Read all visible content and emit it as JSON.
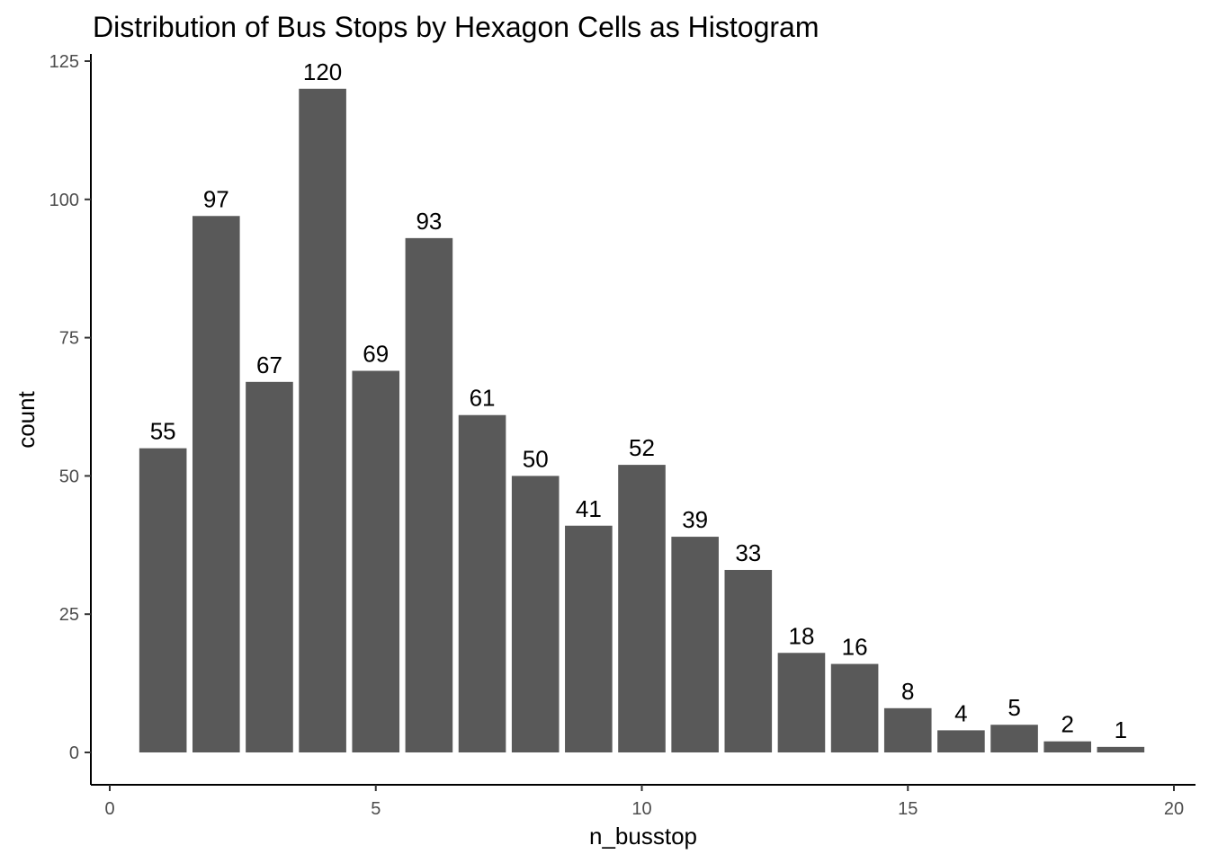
{
  "chart_data": {
    "type": "bar",
    "title": "Distribution of Bus Stops by Hexagon Cells as Histogram",
    "xlabel": "n_busstop",
    "ylabel": "count",
    "x": [
      1,
      2,
      3,
      4,
      5,
      6,
      7,
      8,
      9,
      10,
      11,
      12,
      13,
      14,
      15,
      16,
      17,
      18,
      19
    ],
    "values": [
      55,
      97,
      67,
      120,
      69,
      93,
      61,
      50,
      41,
      52,
      39,
      33,
      18,
      16,
      8,
      4,
      5,
      2,
      1
    ],
    "data_labels": [
      "55",
      "97",
      "67",
      "120",
      "69",
      "93",
      "61",
      "50",
      "41",
      "52",
      "39",
      "33",
      "18",
      "16",
      "8",
      "4",
      "5",
      "2",
      "1"
    ],
    "xlim": [
      0,
      20
    ],
    "ylim": [
      0,
      125
    ],
    "x_ticks": [
      0,
      5,
      10,
      15,
      20
    ],
    "x_tick_labels": [
      "0",
      "5",
      "10",
      "15",
      "20"
    ],
    "y_ticks": [
      0,
      25,
      50,
      75,
      100,
      125
    ],
    "y_tick_labels": [
      "0",
      "25",
      "50",
      "75",
      "100",
      "125"
    ],
    "bar_color": "#595959",
    "grid": false,
    "legend": "none"
  }
}
